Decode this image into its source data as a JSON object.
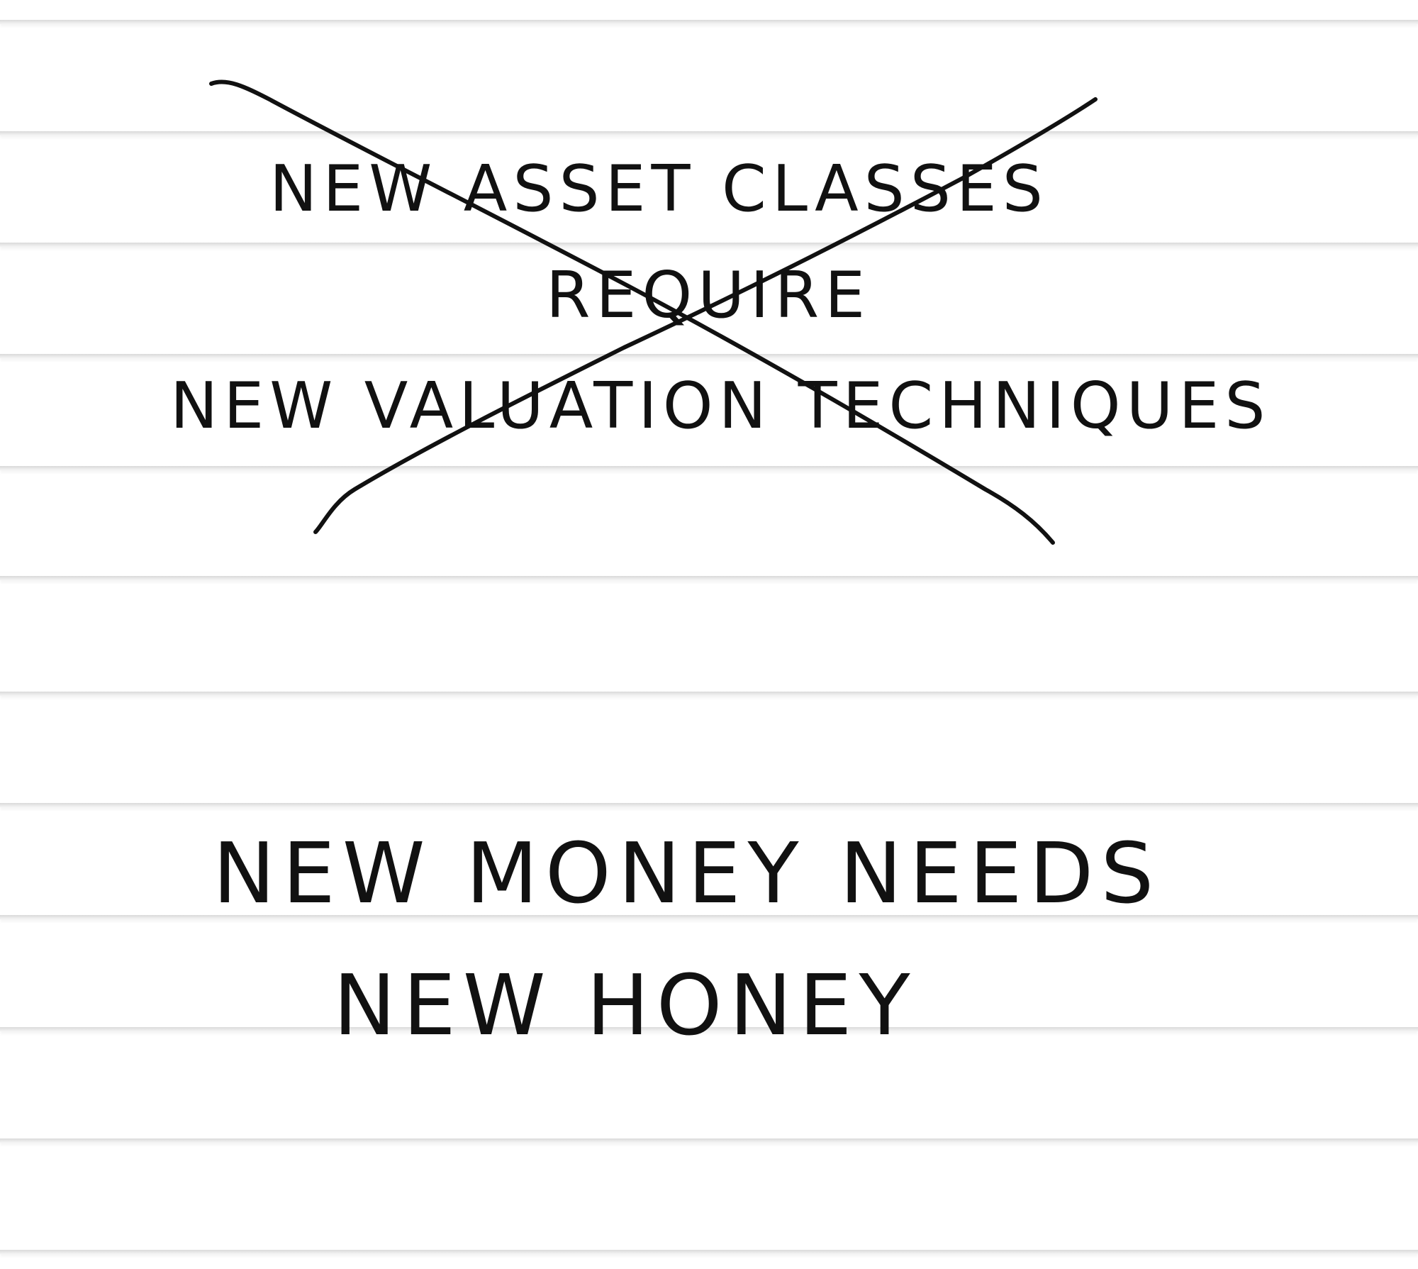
{
  "note": {
    "crossed_out": {
      "line1": "NEW ASSET CLASSES",
      "line2": "REQUIRE",
      "line3": "NEW VALUATION TECHNIQUES"
    },
    "replacement": {
      "line1": "NEW MONEY NEEDS",
      "line2": "NEW HONEY"
    }
  },
  "colors": {
    "ink": "#111111",
    "paper": "#ffffff",
    "rule": "#dcdcdc"
  }
}
